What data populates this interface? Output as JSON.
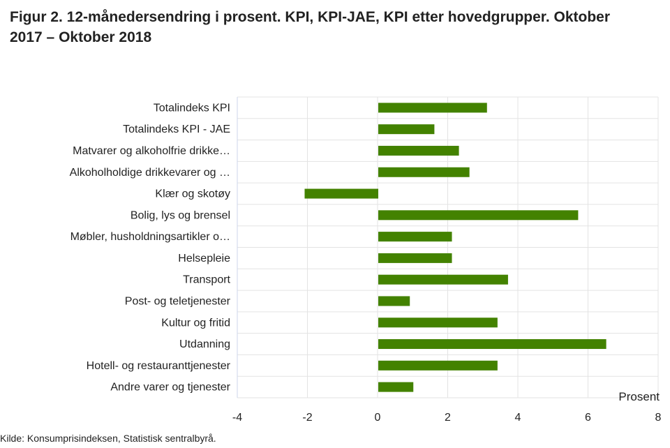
{
  "chart_data": {
    "type": "bar",
    "orientation": "horizontal",
    "title": "Figur 2. 12-månedersendring i prosent. KPI, KPI-JAE, KPI etter hovedgrupper. Oktober 2017 – Oktober 2018",
    "xlabel": "Prosent",
    "categories": [
      "Totalindeks KPI",
      "Totalindeks KPI - JAE",
      "Matvarer og alkoholfrie drikke…",
      "Alkoholholdige drikkevarer og …",
      "Klær og skotøy",
      "Bolig, lys og brensel",
      "Møbler, husholdningsartikler o…",
      "Helsepleie",
      "Transport",
      "Post- og teletjenester",
      "Kultur og fritid",
      "Utdanning",
      "Hotell- og restauranttjenester",
      "Andre varer og tjenester"
    ],
    "values": [
      3.1,
      1.6,
      2.3,
      2.6,
      -2.1,
      5.7,
      2.1,
      2.1,
      3.7,
      0.9,
      3.4,
      6.5,
      3.4,
      1.0
    ],
    "xlim": [
      -4,
      8
    ],
    "xticks": [
      "-4",
      "-2",
      "0",
      "2",
      "4",
      "6",
      "8"
    ],
    "grid": true,
    "bar_color": "#438200",
    "source": "Kilde: Konsumprisindeksen, Statistisk sentralbyrå."
  }
}
